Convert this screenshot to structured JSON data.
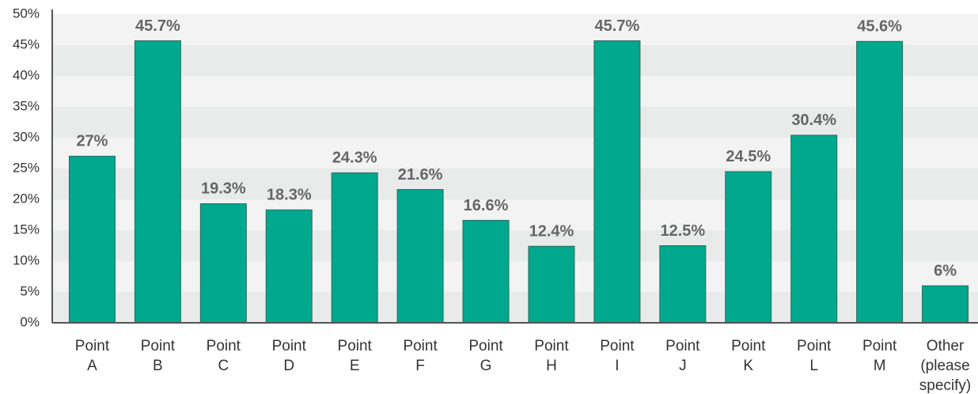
{
  "chart_data": {
    "type": "bar",
    "categories": [
      "Point A",
      "Point B",
      "Point C",
      "Point D",
      "Point E",
      "Point F",
      "Point G",
      "Point H",
      "Point I",
      "Point J",
      "Point K",
      "Point L",
      "Point M",
      "Other (please specify)"
    ],
    "values": [
      27,
      45.7,
      19.3,
      18.3,
      24.3,
      21.6,
      16.6,
      12.4,
      45.7,
      12.5,
      24.5,
      30.4,
      45.6,
      6
    ],
    "value_labels": [
      "27%",
      "45.7%",
      "19.3%",
      "18.3%",
      "24.3%",
      "21.6%",
      "16.6%",
      "12.4%",
      "45.7%",
      "12.5%",
      "24.5%",
      "30.4%",
      "45.6%",
      "6%"
    ],
    "color": "#00a88e",
    "ylim": [
      0,
      50
    ],
    "yticks": [
      {
        "value": 0,
        "label": "0%"
      },
      {
        "value": 5,
        "label": "5%"
      },
      {
        "value": 10,
        "label": "10%"
      },
      {
        "value": 15,
        "label": "15%"
      },
      {
        "value": 20,
        "label": "20%"
      },
      {
        "value": 25,
        "label": "25%"
      },
      {
        "value": 30,
        "label": "30%"
      },
      {
        "value": 35,
        "label": "35%"
      },
      {
        "value": 40,
        "label": "40%"
      },
      {
        "value": 45,
        "label": "45%"
      },
      {
        "value": 50,
        "label": "50%"
      }
    ],
    "grid": true
  }
}
